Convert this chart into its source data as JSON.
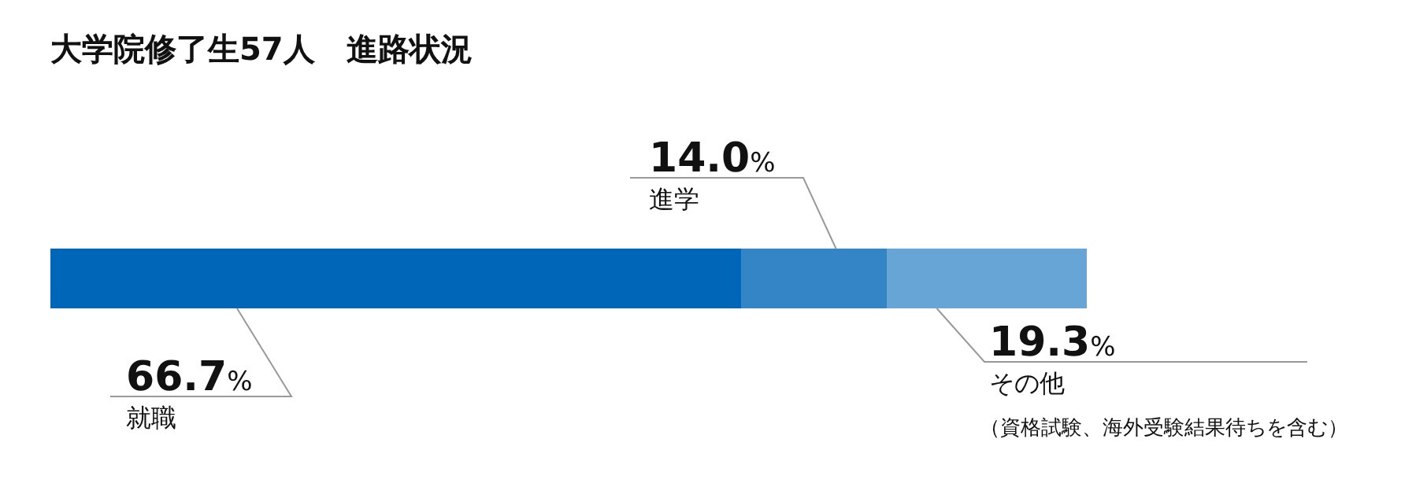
{
  "chart_data": {
    "type": "bar",
    "title": "大学院修了生57人　進路状況",
    "orientation": "horizontal",
    "stacked": true,
    "categories": [
      null
    ],
    "xlim": [
      0,
      100
    ],
    "series": [
      {
        "name": "就職",
        "color": "#0066b8",
        "values": [
          66.7
        ],
        "value_labels": [
          "66.7%"
        ]
      },
      {
        "name": "進学",
        "color": "#3385c6",
        "values": [
          14.0
        ],
        "value_labels": [
          "14.0%"
        ]
      },
      {
        "name": "その他",
        "color": "#66a5d5",
        "values": [
          19.3
        ],
        "value_labels": [
          "19.3%"
        ]
      }
    ],
    "annotations": [
      "（資格試験、海外受験結果待ちを含む）"
    ]
  }
}
